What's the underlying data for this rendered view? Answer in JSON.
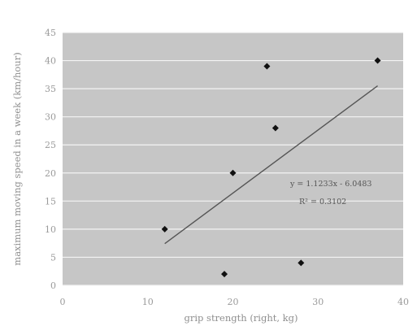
{
  "chart_data": {
    "type": "scatter",
    "title": "",
    "xlabel": "grip strength (right, kg)",
    "ylabel": "maximum moving speed in a week (km/hour)",
    "xlim": [
      0,
      40
    ],
    "ylim": [
      0,
      45
    ],
    "x_ticks": [
      0,
      10,
      20,
      30,
      40
    ],
    "y_ticks": [
      0,
      5,
      10,
      15,
      20,
      25,
      30,
      35,
      40,
      45
    ],
    "grid": "horizontal",
    "plot_background": "#c6c6c6",
    "marker_color": "#111111",
    "series": [
      {
        "points": [
          {
            "x": 12,
            "y": 10
          },
          {
            "x": 19,
            "y": 2
          },
          {
            "x": 20,
            "y": 20
          },
          {
            "x": 24,
            "y": 39
          },
          {
            "x": 25,
            "y": 28
          },
          {
            "x": 28,
            "y": 4
          },
          {
            "x": 37,
            "y": 40
          }
        ]
      }
    ],
    "trendline": {
      "slope": 1.1233,
      "intercept": -6.0483,
      "x_start": 12,
      "x_end": 37,
      "equation_label": "y = 1.1233x - 6.0483",
      "r2_label": "R² = 0.3102"
    }
  }
}
